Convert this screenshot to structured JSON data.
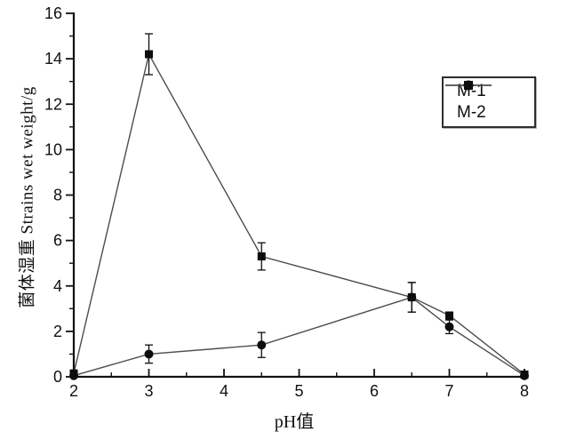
{
  "chart_data": {
    "type": "line",
    "xlabel": "pH值",
    "ylabel": "菌体湿重 Strains wet weight/g",
    "xlim": [
      2,
      8
    ],
    "ylim": [
      0,
      16
    ],
    "x_major_ticks": [
      2,
      3,
      4,
      5,
      6,
      7,
      8
    ],
    "x_minor_ticks": [
      2.5,
      3.5,
      4.5,
      5.5,
      6.5,
      7.5
    ],
    "y_major_ticks": [
      0,
      2,
      4,
      6,
      8,
      10,
      12,
      14,
      16
    ],
    "y_minor_ticks": [
      1,
      3,
      5,
      7,
      9,
      11,
      13,
      15
    ],
    "grid": false,
    "legend_position": "top-right",
    "series": [
      {
        "name": "M-1",
        "marker": "square",
        "x": [
          2,
          3,
          4.5,
          6.5,
          7,
          8
        ],
        "y": [
          0.15,
          14.2,
          5.3,
          3.5,
          2.7,
          0.1
        ],
        "yerr": [
          0,
          0.9,
          0.6,
          0.65,
          0,
          0
        ]
      },
      {
        "name": "M-2",
        "marker": "circle",
        "x": [
          2,
          3,
          4.5,
          6.5,
          7,
          8
        ],
        "y": [
          0.05,
          1.0,
          1.4,
          3.5,
          2.2,
          0.05
        ],
        "yerr": [
          0,
          0.4,
          0.55,
          0.65,
          0.3,
          0
        ]
      }
    ]
  },
  "colors": {
    "background": "#ffffff",
    "axis": "#111111",
    "series_line": "#4d4d4d",
    "marker": "#0d0d0d",
    "text": "#111111",
    "legend_border": "#2e2e2e"
  }
}
